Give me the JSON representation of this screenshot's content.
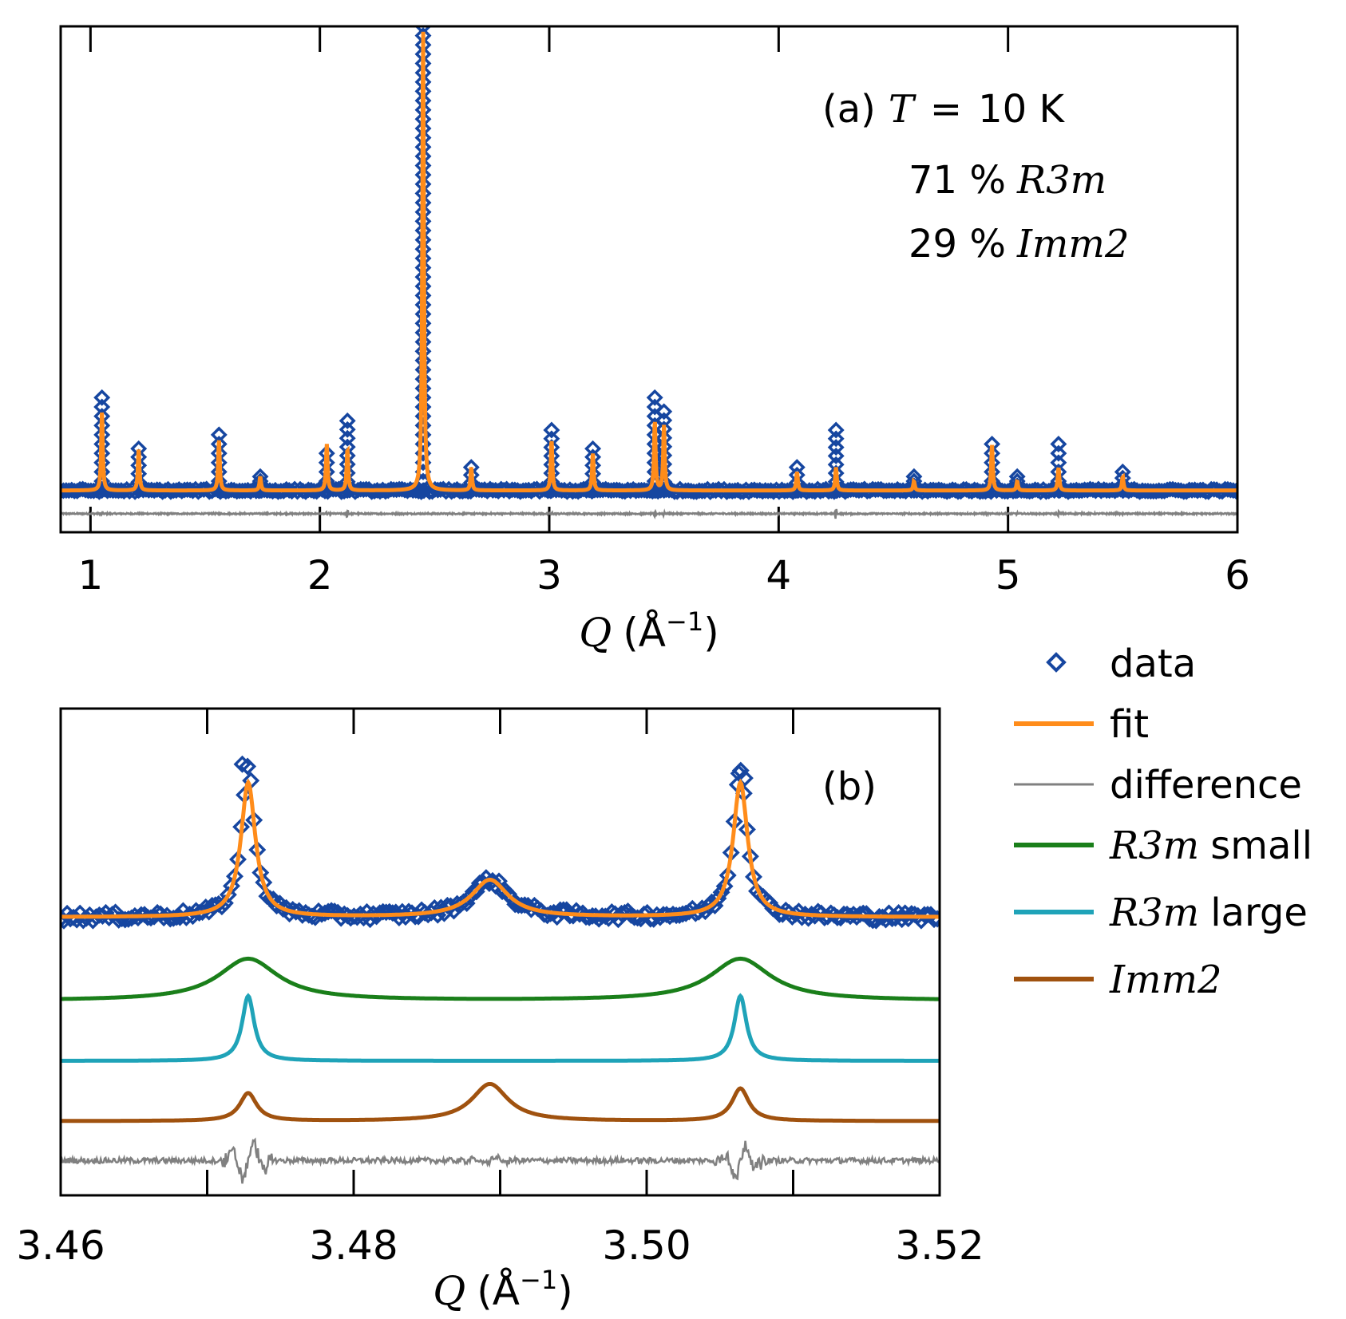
{
  "chart_data": [
    {
      "panel": "a",
      "type": "line",
      "annotation": {
        "label": "(a)",
        "temperature_symbol": "T",
        "equals": "=",
        "temperature_value": "10 K",
        "phase_lines": [
          {
            "percent": "71 %",
            "phase": "R3m"
          },
          {
            "percent": "29 %",
            "phase": "Imm2"
          }
        ]
      },
      "xlabel_symbol": "Q",
      "xlabel_unit": "(Å",
      "xlabel_exp": "−1",
      "xlabel_close": ")",
      "xlim": [
        0.87,
        6.0
      ],
      "ylim": [
        -0.09,
        1.0
      ],
      "xticks": [
        "1",
        "2",
        "3",
        "4",
        "5",
        "6"
      ],
      "x_tick_values": [
        1,
        2,
        3,
        4,
        5,
        6
      ],
      "baseline": 0.0,
      "difference_offset": -0.05,
      "peaks": [
        {
          "q": 1.05,
          "fit": 0.17,
          "data": 0.2
        },
        {
          "q": 1.21,
          "fit": 0.09,
          "data": 0.09
        },
        {
          "q": 1.56,
          "fit": 0.11,
          "data": 0.12
        },
        {
          "q": 1.74,
          "fit": 0.03,
          "data": 0.03
        },
        {
          "q": 2.03,
          "fit": 0.1,
          "data": 0.08
        },
        {
          "q": 2.12,
          "fit": 0.09,
          "data": 0.15
        },
        {
          "q": 2.45,
          "fit": 1.0,
          "data": 1.0
        },
        {
          "q": 2.66,
          "fit": 0.05,
          "data": 0.05
        },
        {
          "q": 3.01,
          "fit": 0.11,
          "data": 0.13
        },
        {
          "q": 3.19,
          "fit": 0.08,
          "data": 0.09
        },
        {
          "q": 3.46,
          "fit": 0.15,
          "data": 0.2
        },
        {
          "q": 3.5,
          "fit": 0.14,
          "data": 0.17
        },
        {
          "q": 4.08,
          "fit": 0.04,
          "data": 0.05
        },
        {
          "q": 4.25,
          "fit": 0.05,
          "data": 0.13
        },
        {
          "q": 4.59,
          "fit": 0.02,
          "data": 0.03
        },
        {
          "q": 4.93,
          "fit": 0.1,
          "data": 0.1
        },
        {
          "q": 5.04,
          "fit": 0.02,
          "data": 0.03
        },
        {
          "q": 5.22,
          "fit": 0.05,
          "data": 0.1
        },
        {
          "q": 5.5,
          "fit": 0.03,
          "data": 0.04
        }
      ]
    },
    {
      "panel": "b",
      "type": "line",
      "annotation": {
        "label": "(b)"
      },
      "xlabel_symbol": "Q",
      "xlabel_unit": "(Å",
      "xlabel_exp": "−1",
      "xlabel_close": ")",
      "xlim": [
        3.46,
        3.52
      ],
      "ylim": [
        -0.05,
        1.0
      ],
      "xticks": [
        "3.46",
        "3.48",
        "3.50",
        "3.52"
      ],
      "x_tick_values": [
        3.46,
        3.48,
        3.5,
        3.52
      ],
      "minor_tick_values": [
        3.47,
        3.49,
        3.51
      ],
      "peak_positions": [
        3.4728,
        3.4893,
        3.5064
      ],
      "series": [
        {
          "name": "fit",
          "baseline": 0.55,
          "peaks": [
            {
              "q": 3.4728,
              "height": 0.29,
              "hwhm": 0.0006
            },
            {
              "q": 3.4893,
              "height": 0.08,
              "hwhm": 0.0015
            },
            {
              "q": 3.5064,
              "height": 0.29,
              "hwhm": 0.0006
            }
          ]
        },
        {
          "name": "R3m small",
          "baseline": 0.37,
          "peaks": [
            {
              "q": 3.4728,
              "height": 0.09,
              "hwhm": 0.0025
            },
            {
              "q": 3.5064,
              "height": 0.09,
              "hwhm": 0.0025
            }
          ]
        },
        {
          "name": "R3m large",
          "baseline": 0.24,
          "peaks": [
            {
              "q": 3.4728,
              "height": 0.14,
              "hwhm": 0.0005
            },
            {
              "q": 3.5064,
              "height": 0.14,
              "hwhm": 0.0005
            }
          ]
        },
        {
          "name": "Imm2",
          "baseline": 0.11,
          "peaks": [
            {
              "q": 3.4728,
              "height": 0.06,
              "hwhm": 0.0007
            },
            {
              "q": 3.4893,
              "height": 0.08,
              "hwhm": 0.0015
            },
            {
              "q": 3.5064,
              "height": 0.07,
              "hwhm": 0.0007
            }
          ]
        },
        {
          "name": "difference",
          "baseline": 0.025
        }
      ]
    }
  ],
  "legend": {
    "items": [
      {
        "key": "data",
        "label": "data",
        "color": "#1646a0",
        "style": "marker"
      },
      {
        "key": "fit",
        "label": "fit",
        "color": "#ff8c1a",
        "style": "line"
      },
      {
        "key": "difference",
        "label": "difference",
        "color": "#808080",
        "style": "thin-line"
      },
      {
        "key": "r3m_small",
        "label_italic": "R3m",
        "label": "small",
        "color": "#1a7f1a",
        "style": "line"
      },
      {
        "key": "r3m_large",
        "label_italic": "R3m",
        "label": "large",
        "color": "#1fa3b8",
        "style": "line"
      },
      {
        "key": "imm2",
        "label_italic": "Imm2",
        "label": "",
        "color": "#a0520f",
        "style": "line"
      }
    ]
  },
  "colors": {
    "data": "#1646a0",
    "fit": "#ff8c1a",
    "difference": "#808080",
    "r3m_small": "#1a7f1a",
    "r3m_large": "#1fa3b8",
    "imm2": "#a0520f"
  }
}
